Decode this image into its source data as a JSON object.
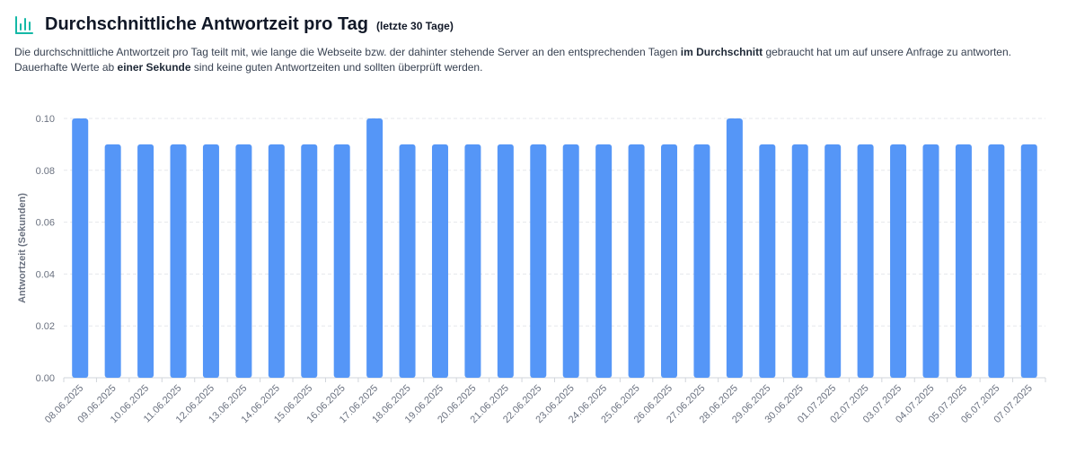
{
  "header": {
    "title": "Durchschnittliche Antwortzeit pro Tag",
    "period": "(letzte 30 Tage)",
    "icon": "bar-chart-icon"
  },
  "description": {
    "line1_pre": "Die durchschnittliche Antwortzeit pro Tag teilt mit, wie lange die Webseite bzw. der dahinter stehende Server an den entsprechenden Tagen ",
    "line1_bold": "im Durchschnitt",
    "line1_post": " gebraucht hat um auf unsere Anfrage zu antworten.",
    "line2_pre": "Dauerhafte Werte ab ",
    "line2_bold": "einer Sekunde",
    "line2_post": " sind keine guten Antwortzeiten und sollten überprüft werden."
  },
  "colors": {
    "bar": "#5596f7",
    "icon": "#14b8a6",
    "grid": "#e5e7eb"
  },
  "chart_data": {
    "type": "bar",
    "title": "",
    "xlabel": "",
    "ylabel": "Antwortzeit (Sekunden)",
    "ylim": [
      0,
      0.1
    ],
    "yticks": [
      "0.00",
      "0.02",
      "0.04",
      "0.06",
      "0.08",
      "0.10"
    ],
    "grid": true,
    "categories": [
      "08.06.2025",
      "09.06.2025",
      "10.06.2025",
      "11.06.2025",
      "12.06.2025",
      "13.06.2025",
      "14.06.2025",
      "15.06.2025",
      "16.06.2025",
      "17.06.2025",
      "18.06.2025",
      "19.06.2025",
      "20.06.2025",
      "21.06.2025",
      "22.06.2025",
      "23.06.2025",
      "24.06.2025",
      "25.06.2025",
      "26.06.2025",
      "27.06.2025",
      "28.06.2025",
      "29.06.2025",
      "30.06.2025",
      "01.07.2025",
      "02.07.2025",
      "03.07.2025",
      "04.07.2025",
      "05.07.2025",
      "06.07.2025",
      "07.07.2025"
    ],
    "values": [
      0.1,
      0.09,
      0.09,
      0.09,
      0.09,
      0.09,
      0.09,
      0.09,
      0.09,
      0.1,
      0.09,
      0.09,
      0.09,
      0.09,
      0.09,
      0.09,
      0.09,
      0.09,
      0.09,
      0.09,
      0.1,
      0.09,
      0.09,
      0.09,
      0.09,
      0.09,
      0.09,
      0.09,
      0.09,
      0.09
    ]
  }
}
